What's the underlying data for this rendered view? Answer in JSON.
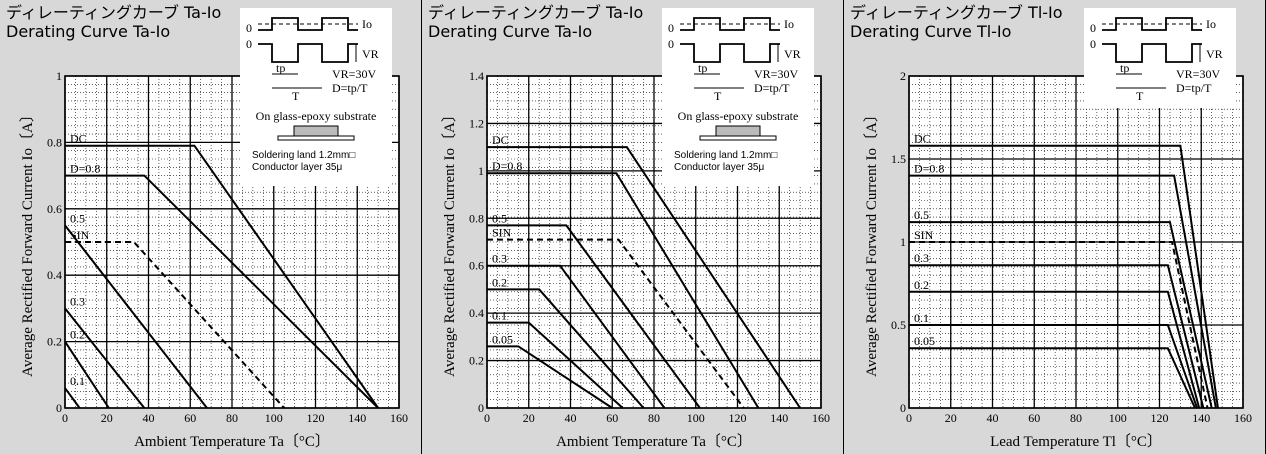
{
  "chart_data": [
    {
      "type": "line",
      "title_jp": "ディレーティングカーブ Ta-Io",
      "title": "Derating Curve Ta-Io",
      "xlabel": "Ambient Temperature  Ta〔°C〕",
      "ylabel": "Average Rectified Forward Current  Io〔A〕",
      "xlim": [
        0,
        160
      ],
      "ylim": [
        0,
        1
      ],
      "xticks": [
        0,
        20,
        40,
        60,
        80,
        100,
        120,
        140,
        160
      ],
      "yticks": [
        0,
        0.2,
        0.4,
        0.6,
        0.8,
        1
      ],
      "ytick_labels": [
        "0",
        "0.2",
        "0.4",
        "0.6",
        "0.8",
        "1"
      ],
      "grid": true,
      "inset": {
        "io": "Io",
        "vr": "VR",
        "zero": "0",
        "tp": "tp",
        "t": "T",
        "cond1": "VR=30V",
        "cond2": "D=tp/T",
        "substrate": "On glass-epoxy substrate",
        "land1": "Soldering land 1.2mm□",
        "land2": "Conductor layer 35μ"
      },
      "series": [
        {
          "name": "DC",
          "dashed": false,
          "x": [
            0,
            62,
            150
          ],
          "y": [
            0.79,
            0.79,
            0
          ]
        },
        {
          "name": "D=0.8",
          "dashed": false,
          "x": [
            0,
            38,
            150
          ],
          "y": [
            0.7,
            0.7,
            0
          ]
        },
        {
          "name": "SIN",
          "dashed": true,
          "x": [
            0,
            33,
            105
          ],
          "y": [
            0.5,
            0.5,
            0
          ]
        },
        {
          "name": "0.5",
          "dashed": false,
          "x": [
            0,
            68
          ],
          "y": [
            0.55,
            0
          ]
        },
        {
          "name": "0.3",
          "dashed": false,
          "x": [
            0,
            38
          ],
          "y": [
            0.3,
            0
          ]
        },
        {
          "name": "0.2",
          "dashed": false,
          "x": [
            0,
            21
          ],
          "y": [
            0.2,
            0
          ]
        },
        {
          "name": "0.1",
          "dashed": false,
          "x": [
            0,
            7
          ],
          "y": [
            0.06,
            0
          ]
        }
      ]
    },
    {
      "type": "line",
      "title_jp": "ディレーティングカーブ Ta-Io",
      "title": "Derating Curve Ta-Io",
      "xlabel": "Ambient Temperature  Ta〔°C〕",
      "ylabel": "Average Rectified Forward Current  Io〔A〕",
      "xlim": [
        0,
        160
      ],
      "ylim": [
        0,
        1.4
      ],
      "xticks": [
        0,
        20,
        40,
        60,
        80,
        100,
        120,
        140,
        160
      ],
      "yticks": [
        0,
        0.2,
        0.4,
        0.6,
        0.8,
        1,
        1.2,
        1.4
      ],
      "ytick_labels": [
        "0",
        "0.2",
        "0.4",
        "0.6",
        "0.8",
        "1",
        "1.2",
        "1.4"
      ],
      "grid": true,
      "inset": {
        "io": "Io",
        "vr": "VR",
        "zero": "0",
        "tp": "tp",
        "t": "T",
        "cond1": "VR=30V",
        "cond2": "D=tp/T",
        "substrate": "On glass-epoxy substrate",
        "land1": "Soldering land 1.2mm□",
        "land2": "Conductor layer 35μ"
      },
      "series": [
        {
          "name": "DC",
          "dashed": false,
          "x": [
            0,
            67,
            150
          ],
          "y": [
            1.1,
            1.1,
            0
          ]
        },
        {
          "name": "D=0.8",
          "dashed": false,
          "x": [
            0,
            62,
            130
          ],
          "y": [
            0.99,
            0.99,
            0
          ]
        },
        {
          "name": "0.5",
          "dashed": false,
          "x": [
            0,
            38,
            102
          ],
          "y": [
            0.77,
            0.77,
            0
          ]
        },
        {
          "name": "SIN",
          "dashed": true,
          "x": [
            0,
            63,
            123
          ],
          "y": [
            0.71,
            0.71,
            0
          ]
        },
        {
          "name": "0.3",
          "dashed": false,
          "x": [
            0,
            35,
            85
          ],
          "y": [
            0.6,
            0.6,
            0
          ]
        },
        {
          "name": "0.2",
          "dashed": false,
          "x": [
            0,
            25,
            75
          ],
          "y": [
            0.5,
            0.5,
            0
          ]
        },
        {
          "name": "0.1",
          "dashed": false,
          "x": [
            0,
            20,
            65
          ],
          "y": [
            0.36,
            0.36,
            0
          ]
        },
        {
          "name": "0.05",
          "dashed": false,
          "x": [
            0,
            15,
            60
          ],
          "y": [
            0.26,
            0.26,
            0
          ]
        }
      ]
    },
    {
      "type": "line",
      "title_jp": "ディレーティングカーブ Tl-Io",
      "title": "Derating Curve Tl-Io",
      "xlabel": "Lead Temperature  Tl〔°C〕",
      "ylabel": "Average Rectified Forward Current  Io〔A〕",
      "xlim": [
        0,
        160
      ],
      "ylim": [
        0,
        2
      ],
      "xticks": [
        0,
        20,
        40,
        60,
        80,
        100,
        120,
        140,
        160
      ],
      "yticks": [
        0,
        0.5,
        1,
        1.5,
        2
      ],
      "ytick_labels": [
        "0",
        "0.5",
        "1",
        "1.5",
        "2"
      ],
      "grid": true,
      "inset": {
        "io": "Io",
        "vr": "VR",
        "zero": "0",
        "tp": "tp",
        "t": "T",
        "cond1": "VR=30V",
        "cond2": "D=tp/T"
      },
      "series": [
        {
          "name": "DC",
          "dashed": false,
          "x": [
            0,
            130,
            148
          ],
          "y": [
            1.58,
            1.58,
            0
          ]
        },
        {
          "name": "D=0.8",
          "dashed": false,
          "x": [
            0,
            127,
            147
          ],
          "y": [
            1.4,
            1.4,
            0
          ]
        },
        {
          "name": "0.5",
          "dashed": false,
          "x": [
            0,
            125,
            145
          ],
          "y": [
            1.12,
            1.12,
            0
          ]
        },
        {
          "name": "SIN",
          "dashed": true,
          "x": [
            0,
            126,
            143
          ],
          "y": [
            1.0,
            1.0,
            0
          ]
        },
        {
          "name": "0.3",
          "dashed": false,
          "x": [
            0,
            124,
            141
          ],
          "y": [
            0.86,
            0.86,
            0
          ]
        },
        {
          "name": "0.2",
          "dashed": false,
          "x": [
            0,
            124,
            139
          ],
          "y": [
            0.7,
            0.7,
            0
          ]
        },
        {
          "name": "0.1",
          "dashed": false,
          "x": [
            0,
            124,
            138
          ],
          "y": [
            0.5,
            0.5,
            0
          ]
        },
        {
          "name": "0.05",
          "dashed": false,
          "x": [
            0,
            124,
            137
          ],
          "y": [
            0.36,
            0.36,
            0
          ]
        }
      ]
    }
  ]
}
